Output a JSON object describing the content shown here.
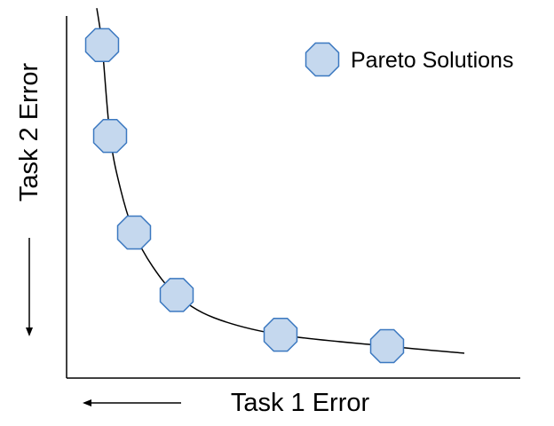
{
  "chart_data": {
    "type": "scatter",
    "title": "",
    "xlabel": "Task 1 Error",
    "ylabel": "Task 2 Error",
    "grid": false,
    "legend_placement": "top-right",
    "series": [
      {
        "name": "Pareto Solutions",
        "marker": "octagon",
        "x": [
          1.0,
          1.3,
          2.2,
          3.8,
          7.7,
          11.7
        ],
        "y": [
          10.6,
          7.4,
          4.0,
          1.8,
          0.4,
          0.0
        ]
      }
    ],
    "curve": {
      "x": [
        0.8,
        1.0,
        1.3,
        1.7,
        2.2,
        2.9,
        3.8,
        5.2,
        7.7,
        11.7,
        14.6
      ],
      "y": [
        11.9,
        10.6,
        7.4,
        5.5,
        4.0,
        2.8,
        1.8,
        1.0,
        0.4,
        0.0,
        -0.25
      ]
    }
  },
  "colors": {
    "marker_fill": "#c5d8ee",
    "marker_stroke": "#3b78c0",
    "curve": "#000000",
    "axis": "#000000"
  }
}
